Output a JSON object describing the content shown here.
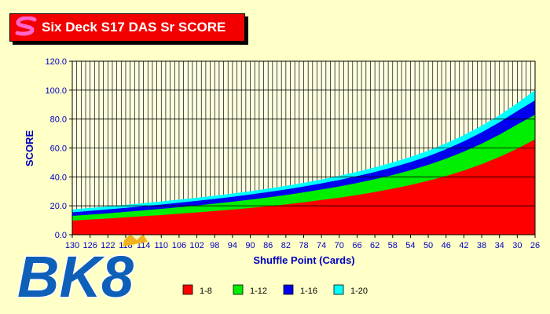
{
  "header": {
    "title": "Six Deck S17 DAS Sr SCORE",
    "logo_icon": "s-logo-icon"
  },
  "watermark": {
    "text": "BK8",
    "icon": "crown-icon"
  },
  "colors": {
    "background": "#FFFFC8",
    "plot_background": "#FFFFE0",
    "title_box": "#F20000",
    "axis_text": "#0000C0",
    "series": [
      "#FF0000",
      "#00EE00",
      "#0000EE",
      "#00FFFF"
    ]
  },
  "chart_data": {
    "type": "area",
    "stacking": "cumulative",
    "title": "Six Deck S17 DAS Sr SCORE",
    "xlabel": "Shuffle Point (Cards)",
    "ylabel": "SCORE",
    "x": [
      130,
      126,
      122,
      118,
      114,
      110,
      106,
      102,
      98,
      94,
      90,
      86,
      82,
      78,
      74,
      70,
      66,
      62,
      58,
      54,
      50,
      46,
      42,
      38,
      34,
      30,
      26
    ],
    "ylim": [
      0,
      120
    ],
    "yticks": [
      "0.0",
      "20.0",
      "40.0",
      "60.0",
      "80.0",
      "100.0",
      "120.0"
    ],
    "grid": true,
    "legend_position": "bottom",
    "series": [
      {
        "name": "1-8",
        "values": [
          9.8,
          10.5,
          11.2,
          12.0,
          12.8,
          13.6,
          14.5,
          15.4,
          16.4,
          17.4,
          18.5,
          19.7,
          21.0,
          22.4,
          24.0,
          25.6,
          27.4,
          29.5,
          31.8,
          34.4,
          37.3,
          40.6,
          44.4,
          48.8,
          53.8,
          59.5,
          66.0
        ]
      },
      {
        "name": "1-12",
        "values": [
          13.0,
          13.9,
          14.8,
          15.8,
          16.8,
          17.9,
          19.0,
          20.2,
          21.5,
          22.8,
          24.3,
          25.8,
          27.5,
          29.3,
          31.3,
          33.4,
          35.8,
          38.4,
          41.3,
          44.6,
          48.3,
          52.6,
          57.5,
          63.0,
          69.2,
          76.2,
          83.0
        ]
      },
      {
        "name": "1-16",
        "values": [
          15.5,
          16.5,
          17.5,
          18.6,
          19.7,
          20.9,
          22.1,
          23.4,
          24.8,
          26.2,
          27.8,
          29.5,
          31.3,
          33.3,
          35.5,
          37.9,
          40.5,
          43.4,
          46.6,
          50.2,
          54.3,
          59.1,
          64.6,
          70.8,
          77.8,
          85.5,
          93.0
        ]
      },
      {
        "name": "1-20",
        "values": [
          17.5,
          18.5,
          19.6,
          20.7,
          21.8,
          23.0,
          24.3,
          25.6,
          27.0,
          28.5,
          30.1,
          31.9,
          33.8,
          35.9,
          38.2,
          40.7,
          43.5,
          46.6,
          50.0,
          53.8,
          58.2,
          63.2,
          68.9,
          75.4,
          82.7,
          91.0,
          100.0
        ]
      }
    ]
  }
}
